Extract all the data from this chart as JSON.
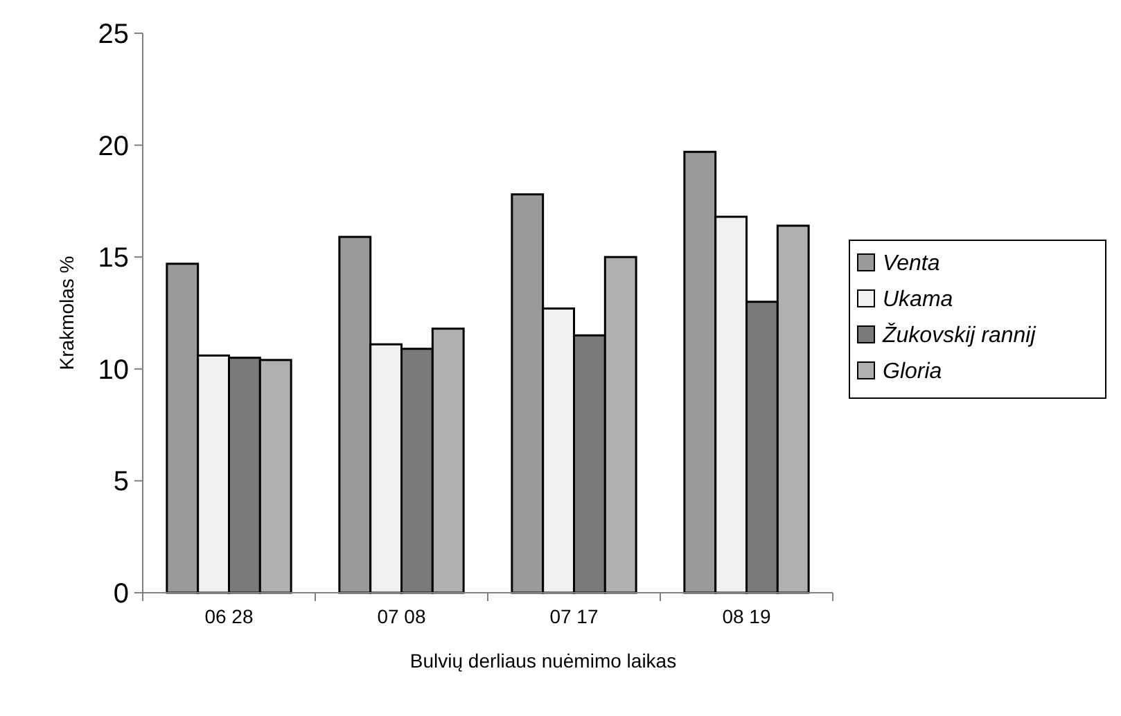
{
  "chart_data": {
    "type": "bar",
    "xlabel": "Bulvių derliaus nuėmimo laikas",
    "ylabel": "Krakmolas %",
    "categories": [
      "06 28",
      "07 08",
      "07 17",
      "08 19"
    ],
    "series": [
      {
        "name": "Venta",
        "color": "#9a9a9a",
        "values": [
          14.7,
          15.9,
          17.8,
          19.7
        ]
      },
      {
        "name": "Ukama",
        "color": "#f0f0f0",
        "values": [
          10.6,
          11.1,
          12.7,
          16.8
        ]
      },
      {
        "name": "Žukovskij rannij",
        "color": "#7a7a7a",
        "values": [
          10.5,
          10.9,
          11.5,
          13.0
        ]
      },
      {
        "name": "Gloria",
        "color": "#b0b0b0",
        "values": [
          10.4,
          11.8,
          15.0,
          16.4
        ]
      }
    ],
    "ylim": [
      0,
      25
    ],
    "yticks": [
      0,
      5,
      10,
      15,
      20,
      25
    ],
    "legend": "right"
  }
}
